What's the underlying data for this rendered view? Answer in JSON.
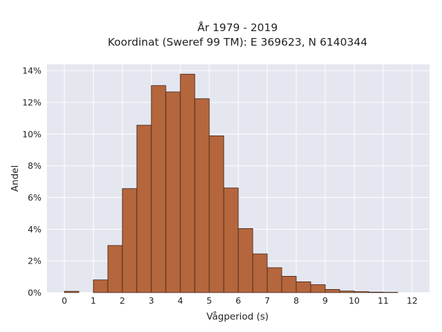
{
  "chart_data": {
    "type": "bar",
    "title_line1": "År 1979 - 2019",
    "title_line2": "Koordinat (Sweref 99 TM): E 369623, N 6140344",
    "xlabel": "Vågperiod (s)",
    "ylabel": "Andel",
    "xlim": [
      -0.6,
      12.6
    ],
    "ylim": [
      0,
      14.4
    ],
    "x_ticks": [
      0,
      1,
      2,
      3,
      4,
      5,
      6,
      7,
      8,
      9,
      10,
      11,
      12
    ],
    "y_ticks": [
      0,
      2,
      4,
      6,
      8,
      10,
      12,
      14
    ],
    "y_tick_labels": [
      "0%",
      "2%",
      "4%",
      "6%",
      "8%",
      "10%",
      "12%",
      "14%"
    ],
    "bin_width": 0.5,
    "bins": [
      {
        "x0": 0.0,
        "value": 0.08
      },
      {
        "x0": 0.5,
        "value": 0.0
      },
      {
        "x0": 1.0,
        "value": 0.8
      },
      {
        "x0": 1.5,
        "value": 2.97
      },
      {
        "x0": 2.0,
        "value": 6.56
      },
      {
        "x0": 2.5,
        "value": 10.56
      },
      {
        "x0": 3.0,
        "value": 13.06
      },
      {
        "x0": 3.5,
        "value": 12.66
      },
      {
        "x0": 4.0,
        "value": 13.78
      },
      {
        "x0": 4.5,
        "value": 12.23
      },
      {
        "x0": 5.0,
        "value": 9.89
      },
      {
        "x0": 5.5,
        "value": 6.6
      },
      {
        "x0": 6.0,
        "value": 4.04
      },
      {
        "x0": 6.5,
        "value": 2.44
      },
      {
        "x0": 7.0,
        "value": 1.57
      },
      {
        "x0": 7.5,
        "value": 1.03
      },
      {
        "x0": 8.0,
        "value": 0.68
      },
      {
        "x0": 8.5,
        "value": 0.5
      },
      {
        "x0": 9.0,
        "value": 0.2
      },
      {
        "x0": 9.5,
        "value": 0.1
      },
      {
        "x0": 10.0,
        "value": 0.06
      },
      {
        "x0": 10.5,
        "value": 0.03
      },
      {
        "x0": 11.0,
        "value": 0.02
      }
    ],
    "grid": true,
    "colors": {
      "plot_background": "#e5e7f0",
      "grid": "#ffffff",
      "bar_fill": "#b5663c",
      "bar_edge": "#3d2418"
    }
  }
}
